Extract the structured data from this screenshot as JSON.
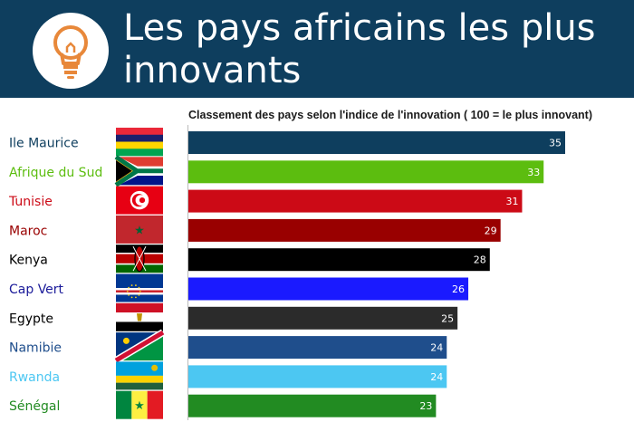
{
  "header": {
    "title": "Les pays africains les plus innovants",
    "icon": "lightbulb-icon",
    "bg_color": "#0e3e5e"
  },
  "chart_data": {
    "type": "bar",
    "orientation": "horizontal",
    "title": "Classement des pays selon l'indice de l'innovation ( 100 = le plus innovant)",
    "xlim": [
      0,
      35
    ],
    "categories": [
      "Ile Maurice",
      "Afrique du Sud",
      "Tunisie",
      "Maroc",
      "Kenya",
      "Cap Vert",
      "Egypte",
      "Namibie",
      "Rwanda",
      "Sénégal"
    ],
    "values": [
      35,
      33,
      31,
      29,
      28,
      26,
      25,
      24,
      24,
      23
    ],
    "bar_colors": [
      "#0e3e5e",
      "#5cbd0f",
      "#cc0a16",
      "#990000",
      "#000000",
      "#1a1aff",
      "#2b2b2b",
      "#1f4e8c",
      "#4cc7f2",
      "#228b22"
    ],
    "label_colors": [
      "#0e3e5e",
      "#5cbd0f",
      "#cc0a16",
      "#990000",
      "#000000",
      "#1a1a99",
      "#000000",
      "#1f4e8c",
      "#4cc7f2",
      "#228b22"
    ],
    "flags": [
      "mauritius-flag",
      "south-africa-flag",
      "tunisia-flag",
      "morocco-flag",
      "kenya-flag",
      "cape-verde-flag",
      "egypt-flag",
      "namibia-flag",
      "rwanda-flag",
      "senegal-flag"
    ],
    "legend": "none",
    "grid": false
  }
}
